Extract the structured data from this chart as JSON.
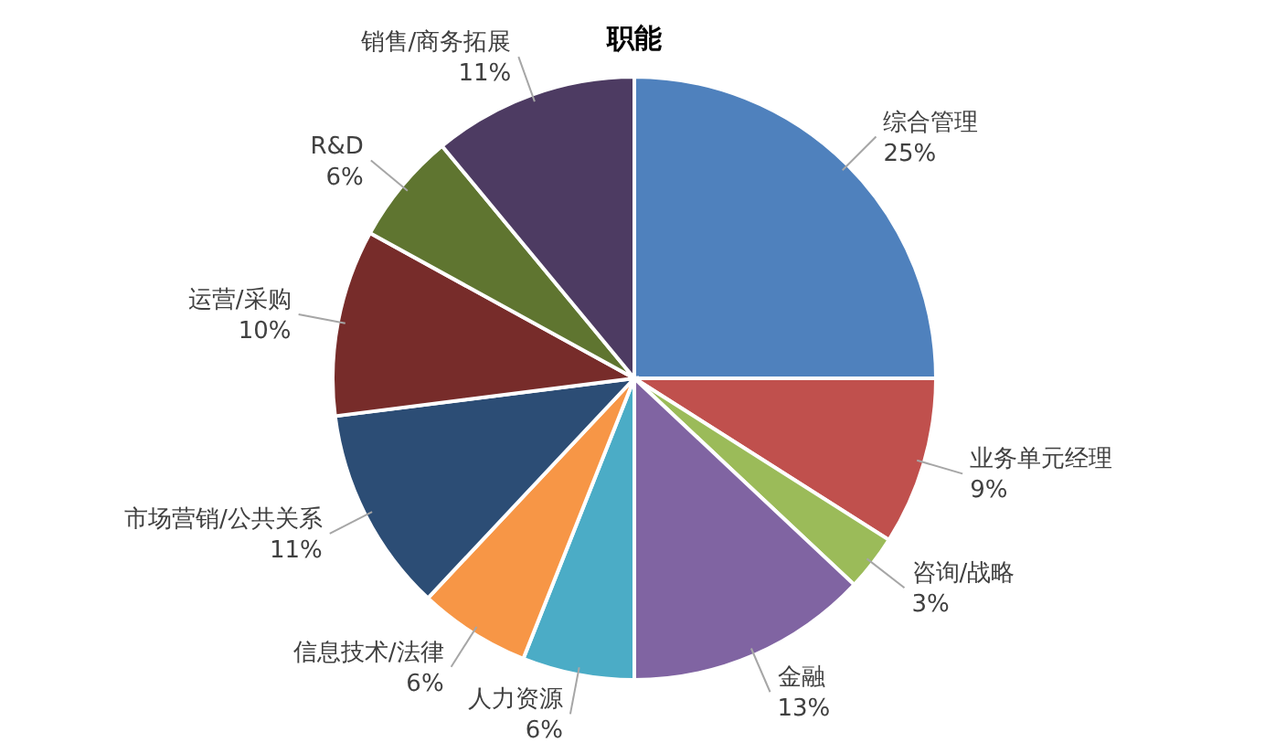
{
  "chart_data": {
    "type": "pie",
    "title": "职能",
    "value_labels": [
      "25%",
      "9%",
      "3%",
      "13%",
      "6%",
      "6%",
      "11%",
      "10%",
      "6%",
      "11%"
    ],
    "categories": [
      "综合管理",
      "业务单元经理",
      "咨询/战略",
      "金融",
      "人力资源",
      "信息技术/法律",
      "市场营销/公共关系",
      "运营/采购",
      "R&D",
      "销售/商务拓展"
    ],
    "values": [
      25,
      9,
      3,
      13,
      6,
      6,
      11,
      10,
      6,
      11
    ],
    "colors": [
      "#4f81bd",
      "#c0504d",
      "#9bbb59",
      "#8064a2",
      "#4bacc6",
      "#f79646",
      "#2c4d75",
      "#772c2a",
      "#5f7530",
      "#4d3b62"
    ]
  }
}
